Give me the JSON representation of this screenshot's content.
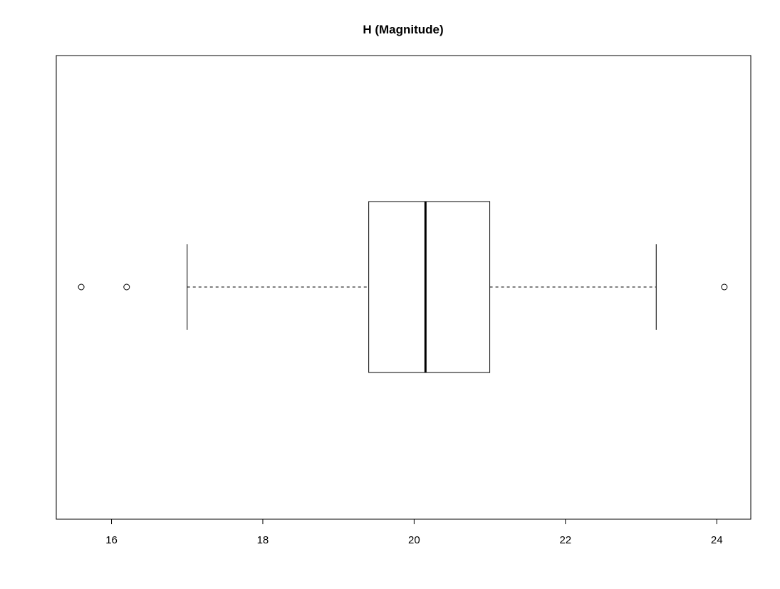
{
  "chart_data": {
    "type": "boxplot",
    "orientation": "horizontal",
    "title": "H (Magnitude)",
    "xlabel": "",
    "ylabel": "",
    "xlim": [
      15.27,
      24.45
    ],
    "ticks": [
      16,
      18,
      20,
      22,
      24
    ],
    "tick_labels": [
      "16",
      "18",
      "20",
      "22",
      "24"
    ],
    "grid": false,
    "box": {
      "whisker_low": 17.0,
      "q1": 19.4,
      "median": 20.15,
      "q3": 21.0,
      "whisker_high": 23.2
    },
    "outliers": [
      15.6,
      16.2,
      24.1
    ],
    "colors": {
      "line": "#000000",
      "background": "#ffffff"
    }
  }
}
